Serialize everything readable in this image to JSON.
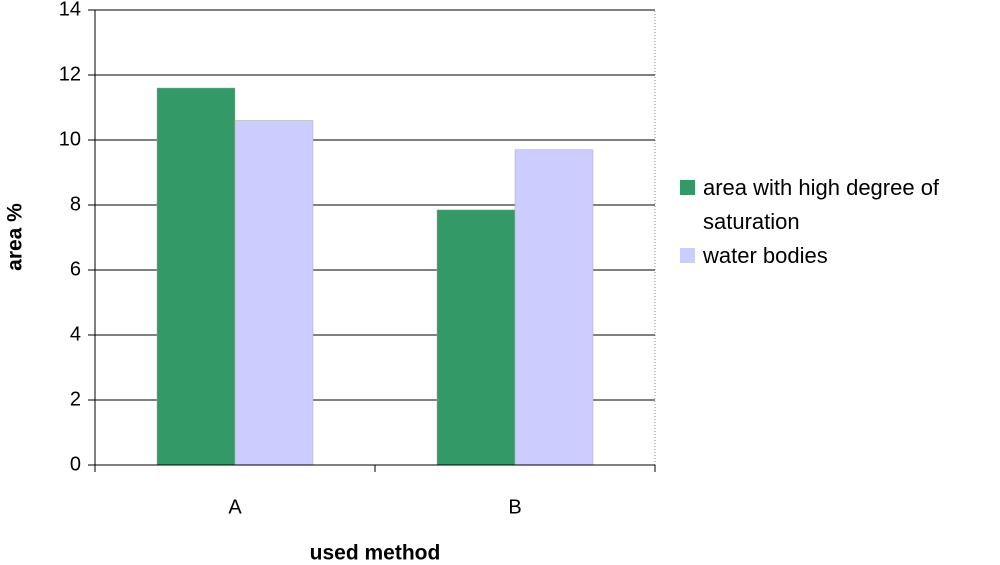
{
  "chart_data": {
    "type": "bar",
    "categories": [
      "A",
      "B"
    ],
    "series": [
      {
        "name": "area with high degree of saturation",
        "color": "#339966",
        "values": [
          11.6,
          7.85
        ]
      },
      {
        "name": "water bodies",
        "color": "#ccccff",
        "values": [
          10.6,
          9.7
        ]
      }
    ],
    "x_label": "used method",
    "y_label": "area %",
    "ylim": [
      0,
      14
    ],
    "yticks": [
      0,
      2,
      4,
      6,
      8,
      10,
      12,
      14
    ],
    "grid": true,
    "legend": "right"
  }
}
